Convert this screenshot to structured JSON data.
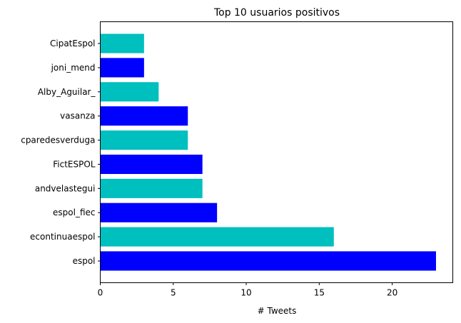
{
  "chart_data": {
    "type": "bar",
    "orientation": "horizontal",
    "title": "Top 10 usuarios positivos",
    "xlabel": "# Tweets",
    "ylabel": "",
    "categories": [
      "espol",
      "econtinuaespol",
      "espol_fiec",
      "andvelastegui",
      "FictESPOL",
      "cparedesverduga",
      "vasanza",
      "Alby_Aguilar_",
      "joni_mend",
      "CipatEspol"
    ],
    "values": [
      23,
      16,
      8,
      7,
      7,
      6,
      6,
      4,
      3,
      3
    ],
    "colors": [
      "#0000ff",
      "#00bfbf",
      "#0000ff",
      "#00bfbf",
      "#0000ff",
      "#00bfbf",
      "#0000ff",
      "#00bfbf",
      "#0000ff",
      "#00bfbf"
    ],
    "xlim": [
      0,
      24.15
    ],
    "xticks": [
      0,
      5,
      10,
      15,
      20
    ],
    "grid": false,
    "legend": "none"
  }
}
